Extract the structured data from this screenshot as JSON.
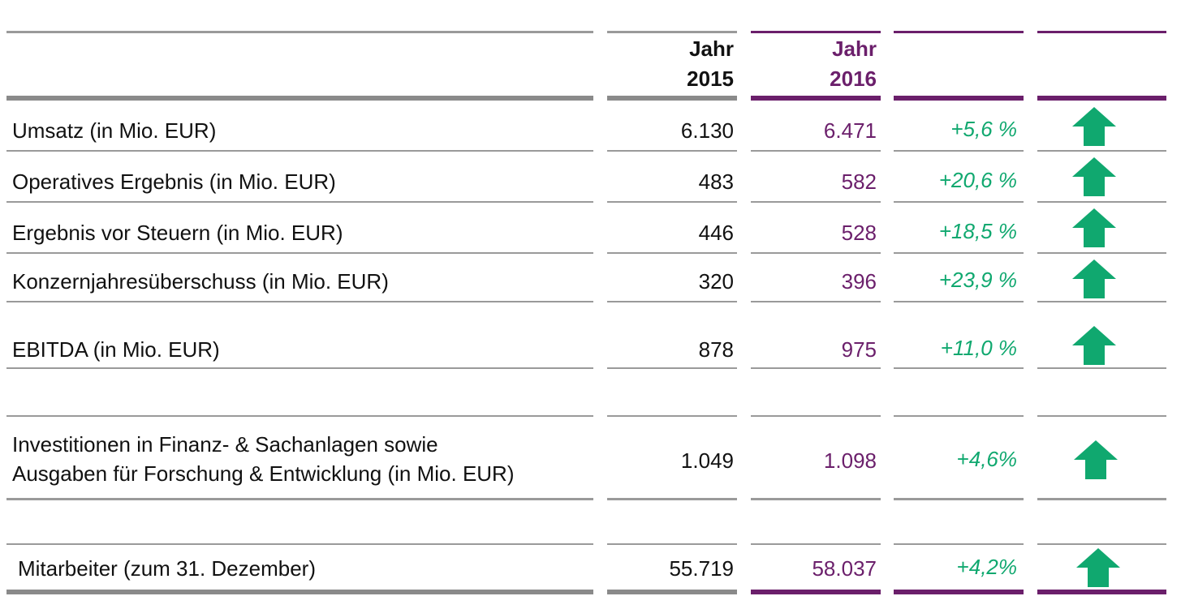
{
  "header": {
    "col_2015": [
      "Jahr",
      "2015"
    ],
    "col_2016": [
      "Jahr",
      "2016"
    ]
  },
  "colors": {
    "purple": "#6b1f6b",
    "green": "#10a86f",
    "grey": "#8a8a8a"
  },
  "rows": [
    {
      "label": "Umsatz (in Mio. EUR)",
      "v2015": "6.130",
      "v2016": "6.471",
      "change": "+5,6 %",
      "trend": "up-arrow-icon"
    },
    {
      "label": "Operatives Ergebnis (in Mio. EUR)",
      "v2015": "483",
      "v2016": "582",
      "change": "+20,6 %",
      "trend": "up-arrow-icon"
    },
    {
      "label": "Ergebnis vor Steuern (in Mio. EUR)",
      "v2015": "446",
      "v2016": "528",
      "change": "+18,5 %",
      "trend": "up-arrow-icon"
    },
    {
      "label": "Konzernjahresüberschuss (in Mio. EUR)",
      "v2015": "320",
      "v2016": "396",
      "change": "+23,9 %",
      "trend": "up-arrow-icon"
    },
    {
      "label": "EBITDA (in Mio. EUR)",
      "v2015": "878",
      "v2016": "975",
      "change": "+11,0 %",
      "trend": "up-arrow-icon"
    },
    {
      "label_lines": [
        "Investitionen in Finanz- & Sachanlagen sowie",
        "Ausgaben für Forschung & Entwicklung (in Mio. EUR)"
      ],
      "v2015": "1.049",
      "v2016": "1.098",
      "change": "+4,6%",
      "trend": "up-arrow-icon"
    },
    {
      "label": "Mitarbeiter (zum 31. Dezember)",
      "v2015": "55.719",
      "v2016": "58.037",
      "change": "+4,2%",
      "trend": "up-arrow-icon"
    }
  ]
}
